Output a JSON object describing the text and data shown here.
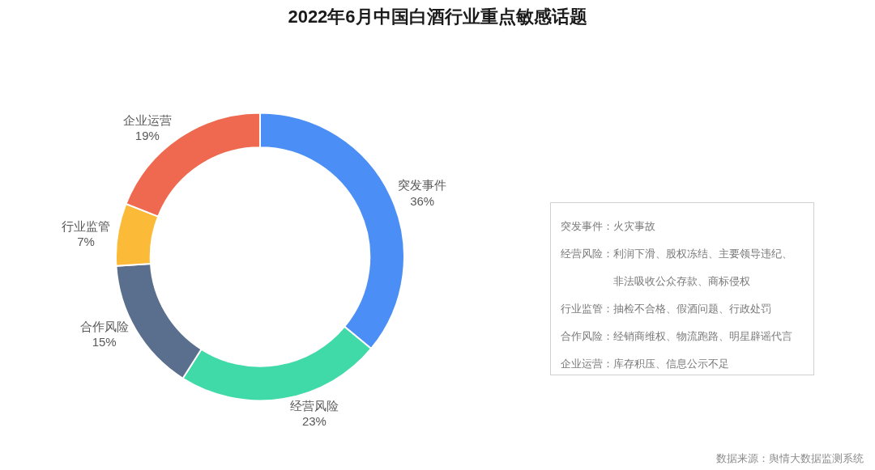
{
  "chart_data": [
    {
      "type": "donut",
      "title": "2022年6月中国白酒行业重点敏感话题",
      "categories": [
        "突发事件",
        "经营风险",
        "合作风险",
        "行业监管",
        "企业运营"
      ],
      "values": [
        36,
        23,
        15,
        7,
        19
      ],
      "value_labels": [
        "36%",
        "23%",
        "15%",
        "7%",
        "19%"
      ],
      "colors": [
        "#4b8ff6",
        "#40d9a8",
        "#5a6e8e",
        "#fbbb38",
        "#ef6950"
      ],
      "annotations": [
        "数据来源：舆情大数据监测系统"
      ]
    },
    {
      "type": "other",
      "annotations": [
        "突发事件：火灾事故",
        "经营风险：利润下滑、股权冻结、主要领导违纪、非法吸收公众存款、商标侵权",
        "行业监管：抽检不合格、假酒问题、行政处罚",
        "合作风险：经销商维权、物流跑路、明星辟谣代言",
        "企业运营：库存积压、信息公示不足"
      ]
    }
  ]
}
